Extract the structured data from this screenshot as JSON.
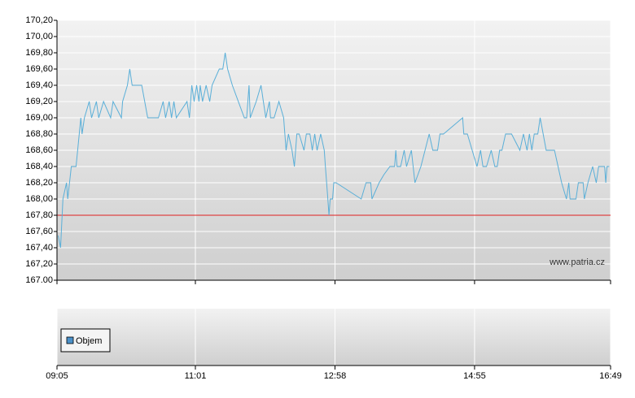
{
  "chart_data": [
    {
      "type": "line",
      "watermark": "www.patria.cz",
      "x": [
        "09:06",
        "09:08",
        "09:10",
        "09:13",
        "09:14",
        "09:17",
        "09:21",
        "09:25",
        "09:26",
        "09:28",
        "09:32",
        "09:34",
        "09:38",
        "09:40",
        "09:44",
        "09:50",
        "09:52",
        "09:59",
        "10:00",
        "10:04",
        "10:06",
        "10:08",
        "10:16",
        "10:21",
        "10:30",
        "10:34",
        "10:36",
        "10:39",
        "10:41",
        "10:43",
        "10:45",
        "10:54",
        "10:56",
        "10:58",
        "11:00",
        "11:02",
        "11:04",
        "11:05",
        "11:07",
        "11:10",
        "11:13",
        "11:15",
        "11:21",
        "11:24",
        "11:26",
        "11:28",
        "11:32",
        "11:42",
        "11:44",
        "11:46",
        "11:47",
        "11:52",
        "11:56",
        "11:58",
        "12:00",
        "12:03",
        "12:04",
        "12:07",
        "12:11",
        "12:15",
        "12:17",
        "12:19",
        "12:22",
        "12:24",
        "12:26",
        "12:28",
        "12:32",
        "12:34",
        "12:37",
        "12:39",
        "12:41",
        "12:43",
        "12:46",
        "12:49",
        "12:50",
        "12:52",
        "12:53",
        "12:54",
        "12:56",
        "12:57",
        "12:59",
        "13:20",
        "13:24",
        "13:28",
        "13:29",
        "13:35",
        "13:39",
        "13:44",
        "13:48",
        "13:49",
        "13:50",
        "13:53",
        "13:56",
        "13:58",
        "14:02",
        "14:05",
        "14:10",
        "14:17",
        "14:20",
        "14:24",
        "14:26",
        "14:29",
        "14:45",
        "14:46",
        "14:49",
        "14:53",
        "14:57",
        "15:00",
        "15:02",
        "15:05",
        "15:09",
        "15:12",
        "15:14",
        "15:16",
        "15:18",
        "15:21",
        "15:26",
        "15:33",
        "15:36",
        "15:39",
        "15:41",
        "15:43",
        "15:45",
        "15:48",
        "15:50",
        "15:55",
        "15:59",
        "16:02",
        "16:05",
        "16:08",
        "16:10",
        "16:12",
        "16:14",
        "16:15",
        "16:20",
        "16:22",
        "16:26",
        "16:27",
        "16:30",
        "16:34",
        "16:37",
        "16:39",
        "16:44",
        "16:45",
        "16:46",
        "16:48"
      ],
      "series": [
        {
          "color": "#5aafd8",
          "values": [
            167.55,
            167.4,
            168.0,
            168.2,
            168.0,
            168.4,
            168.4,
            169.0,
            168.8,
            169.0,
            169.2,
            169.0,
            169.2,
            169.0,
            169.2,
            169.0,
            169.2,
            169.0,
            169.2,
            169.4,
            169.6,
            169.4,
            169.4,
            169.0,
            169.0,
            169.2,
            169.0,
            169.2,
            169.0,
            169.2,
            169.0,
            169.2,
            169.0,
            169.4,
            169.2,
            169.4,
            169.2,
            169.4,
            169.2,
            169.4,
            169.2,
            169.4,
            169.6,
            169.6,
            169.8,
            169.6,
            169.4,
            169.0,
            169.0,
            169.4,
            169.0,
            169.2,
            169.4,
            169.2,
            169.0,
            169.2,
            169.0,
            169.0,
            169.2,
            169.0,
            168.6,
            168.8,
            168.6,
            168.4,
            168.8,
            168.8,
            168.6,
            168.8,
            168.8,
            168.6,
            168.8,
            168.6,
            168.8,
            168.6,
            168.4,
            168.0,
            167.8,
            168.0,
            168.0,
            168.2,
            168.2,
            168.0,
            168.2,
            168.2,
            168.0,
            168.2,
            168.3,
            168.4,
            168.4,
            168.6,
            168.4,
            168.4,
            168.6,
            168.4,
            168.6,
            168.2,
            168.4,
            168.8,
            168.6,
            168.6,
            168.8,
            168.8,
            169.0,
            168.8,
            168.8,
            168.6,
            168.4,
            168.6,
            168.4,
            168.4,
            168.6,
            168.4,
            168.4,
            168.6,
            168.6,
            168.8,
            168.8,
            168.6,
            168.8,
            168.6,
            168.8,
            168.6,
            168.8,
            168.8,
            169.0,
            168.6,
            168.6,
            168.6,
            168.4,
            168.2,
            168.1,
            168.0,
            168.2,
            168.0,
            168.0,
            168.2,
            168.2,
            168.0,
            168.2,
            168.4,
            168.2,
            168.4,
            168.4,
            168.2,
            168.4,
            168.4
          ]
        }
      ],
      "reference_line": {
        "value": 167.8,
        "color": "#e02020"
      },
      "xlim": [
        "09:05",
        "16:49"
      ],
      "xticks": [
        "09:05",
        "11:01",
        "12:58",
        "14:55",
        "16:49"
      ],
      "ylim": [
        167.0,
        170.2
      ],
      "yticks": [
        {
          "value": 167.0,
          "label": "167.00"
        },
        {
          "value": 167.2,
          "label": "167,20"
        },
        {
          "value": 167.4,
          "label": "167,40"
        },
        {
          "value": 167.6,
          "label": "167,60"
        },
        {
          "value": 167.8,
          "label": "167,80"
        },
        {
          "value": 168.0,
          "label": "168,00"
        },
        {
          "value": 168.2,
          "label": "168,20"
        },
        {
          "value": 168.4,
          "label": "168,40"
        },
        {
          "value": 168.6,
          "label": "168,60"
        },
        {
          "value": 168.8,
          "label": "168,80"
        },
        {
          "value": 169.0,
          "label": "169,00"
        },
        {
          "value": 169.2,
          "label": "169,20"
        },
        {
          "value": 169.4,
          "label": "169,40"
        },
        {
          "value": 169.6,
          "label": "169,60"
        },
        {
          "value": 169.8,
          "label": "169,80"
        },
        {
          "value": 170.0,
          "label": "170,00"
        },
        {
          "value": 170.2,
          "label": "170,20"
        }
      ],
      "grid": true
    },
    {
      "type": "bar",
      "x": [],
      "series": [
        {
          "name": "Objem",
          "color": "#4a90c8",
          "values": []
        }
      ]
    }
  ]
}
